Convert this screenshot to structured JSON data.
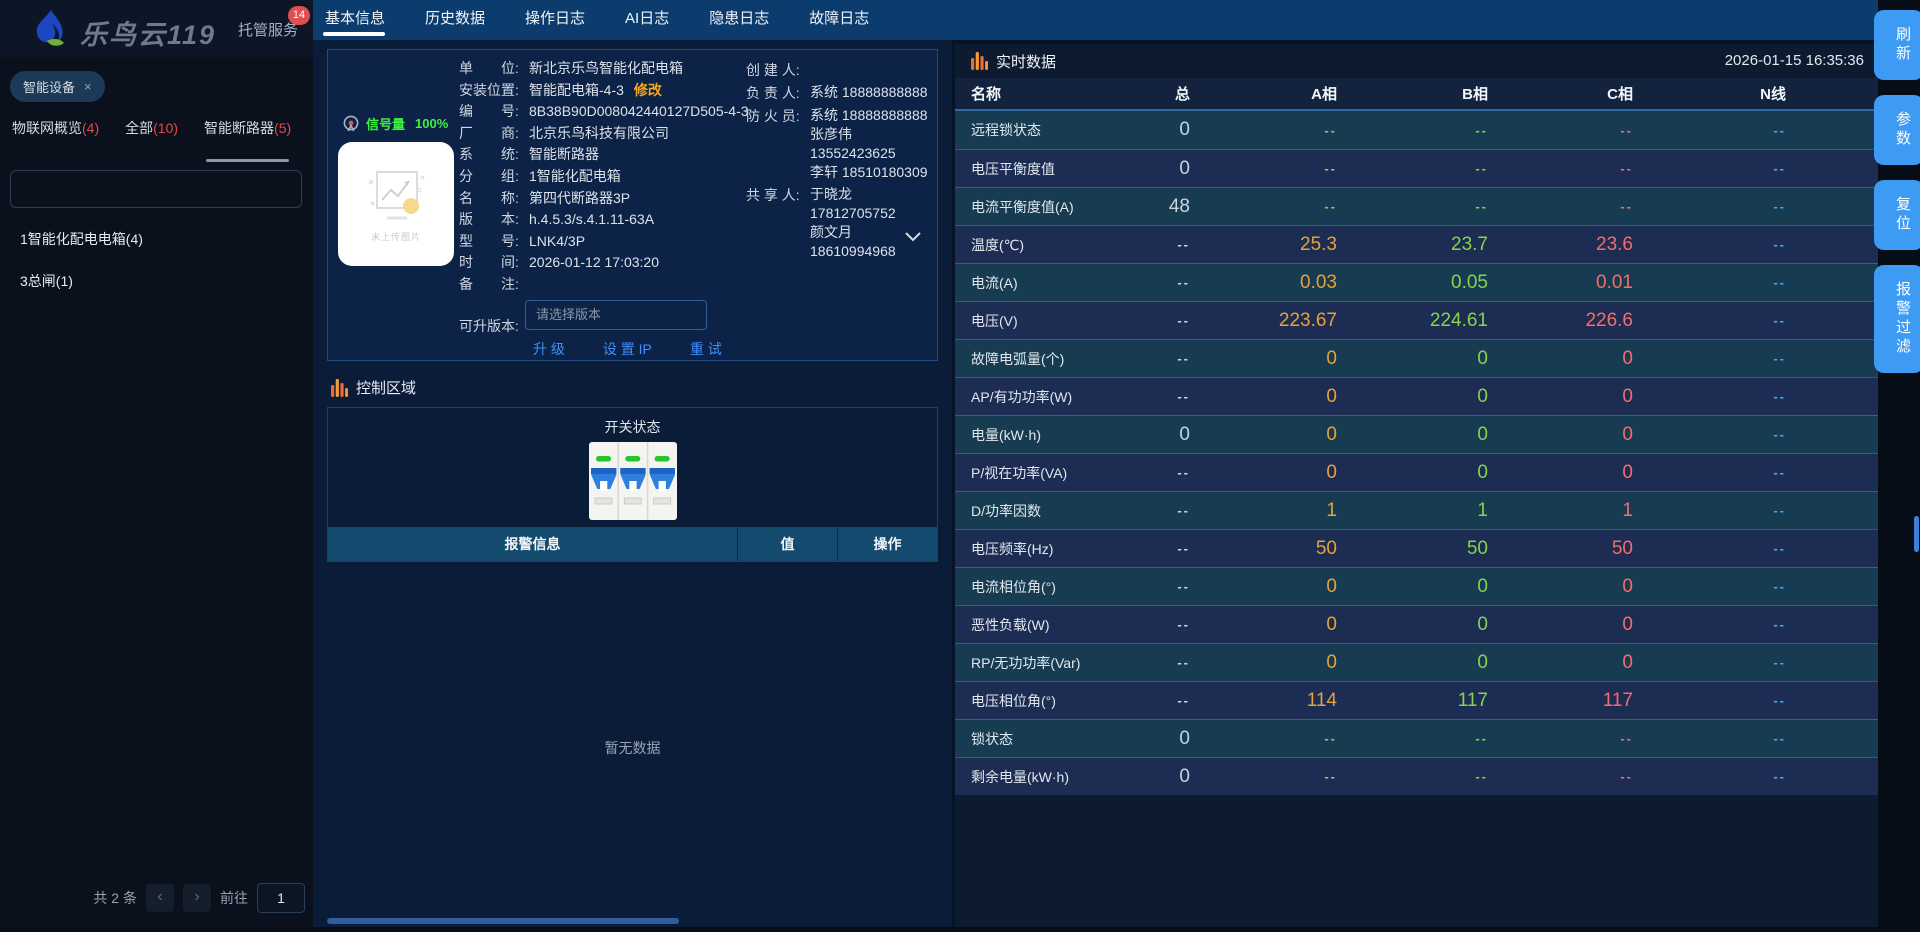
{
  "colors": {
    "phase_a": "#e6a23c",
    "phase_b": "#85d44b",
    "phase_c": "#f56c6c",
    "phase_n": "#3ba7ff",
    "total_col": "#cdd3dd",
    "accent_orange": "#f59a3c",
    "signal_green": "#3df03d",
    "button_blue": "#3e9bf4",
    "count_red": "#e34848",
    "link_blue": "#3f8ffc",
    "modify_orange": "#f5a623"
  },
  "header": {
    "logo_text": "乐鸟云119",
    "nav_label": "托管服务",
    "badge": "14"
  },
  "sidebar": {
    "chip_label": "智能设备",
    "close_glyph": "×",
    "tabs": [
      {
        "label": "物联网概览",
        "count": "(4)"
      },
      {
        "label": "全部",
        "count": "(10)"
      },
      {
        "label": "智能断路器",
        "count": "(5)",
        "active": true
      }
    ],
    "search_placeholder": "",
    "list": [
      "1智能化配电电箱(4)",
      "3总闸(1)"
    ],
    "pagination": {
      "total": "共 2 条",
      "prev": "‹",
      "next": "›",
      "goto_label": "前往",
      "page_value": "1"
    }
  },
  "detail": {
    "tabs": [
      {
        "label": "基本信息",
        "active": true
      },
      {
        "label": "历史数据"
      },
      {
        "label": "操作日志"
      },
      {
        "label": "AI日志"
      },
      {
        "label": "隐患日志"
      },
      {
        "label": "故障日志"
      }
    ],
    "signal_label": "信号量",
    "signal_value": "100%",
    "photo_text": "未上传图片",
    "fields": [
      {
        "label": "单　　位:",
        "value": "新北京乐鸟智能化配电箱"
      },
      {
        "label": "安装位置:",
        "value": "智能配电箱-4-3",
        "link": "修改"
      },
      {
        "label": "编　　号:",
        "value": "8B38B90D008042440127D505-4-3"
      },
      {
        "label": "厂　　商:",
        "value": "北京乐鸟科技有限公司"
      },
      {
        "label": "系　　统:",
        "value": "智能断路器"
      },
      {
        "label": "分　　组:",
        "value": "1智能化配电箱"
      },
      {
        "label": "名　　称:",
        "value": "第四代断路器3P"
      },
      {
        "label": "版　　本:",
        "value": "h.4.5.3/s.4.1.11-63A"
      },
      {
        "label": "型　　号:",
        "value": "LNK4/3P"
      },
      {
        "label": "时　　间:",
        "value": "2026-01-12 17:03:20"
      },
      {
        "label": "备　　注:",
        "value": ""
      }
    ],
    "contacts": [
      {
        "label": "创 建 人:",
        "lines": [
          ""
        ]
      },
      {
        "label": "负 责 人:",
        "lines": [
          "系统 18888888888"
        ]
      },
      {
        "label": "防 火 员:",
        "lines": [
          "系统 18888888888",
          "张彦伟",
          "13552423625",
          "李轩 18510180309"
        ]
      },
      {
        "label": "共 享 人:",
        "lines": [
          "于晓龙",
          "17812705752",
          "颜文月",
          "18610994968"
        ]
      }
    ],
    "upgrade": {
      "label": "可升版本:",
      "select_placeholder": "请选择版本",
      "actions": [
        "升 级",
        "设 置 IP",
        "重 试"
      ]
    },
    "control_title": "控制区域",
    "switch_label": "开关状态",
    "alarm": {
      "headers": [
        "报警信息",
        "值",
        "操作"
      ],
      "empty_text": "暂无数据"
    }
  },
  "realtime": {
    "title": "实时数据",
    "timestamp": "2026-01-15 16:35:36",
    "columns": [
      "名称",
      "总",
      "A相",
      "B相",
      "C相",
      "N线"
    ],
    "rows": [
      {
        "name": "远程锁状态",
        "total": "0",
        "a": "--",
        "b": "--",
        "c": "--",
        "n": "--"
      },
      {
        "name": "电压平衡度值",
        "total": "0",
        "a": "--",
        "b": "--",
        "c": "--",
        "n": "--"
      },
      {
        "name": "电流平衡度值(A)",
        "total": "48",
        "a": "--",
        "b": "--",
        "c": "--",
        "n": "--"
      },
      {
        "name": "温度(℃)",
        "total": "--",
        "a": "25.3",
        "b": "23.7",
        "c": "23.6",
        "n": "--"
      },
      {
        "name": "电流(A)",
        "total": "--",
        "a": "0.03",
        "b": "0.05",
        "c": "0.01",
        "n": "--"
      },
      {
        "name": "电压(V)",
        "total": "--",
        "a": "223.67",
        "b": "224.61",
        "c": "226.6",
        "n": "--"
      },
      {
        "name": "故障电弧量(个)",
        "total": "--",
        "a": "0",
        "b": "0",
        "c": "0",
        "n": "--"
      },
      {
        "name": "AP/有功功率(W)",
        "total": "--",
        "a": "0",
        "b": "0",
        "c": "0",
        "n": "--"
      },
      {
        "name": "电量(kW·h)",
        "total": "0",
        "a": "0",
        "b": "0",
        "c": "0",
        "n": "--"
      },
      {
        "name": "P/视在功率(VA)",
        "total": "--",
        "a": "0",
        "b": "0",
        "c": "0",
        "n": "--"
      },
      {
        "name": "D/功率因数",
        "total": "--",
        "a": "1",
        "b": "1",
        "c": "1",
        "n": "--"
      },
      {
        "name": "电压频率(Hz)",
        "total": "--",
        "a": "50",
        "b": "50",
        "c": "50",
        "n": "--"
      },
      {
        "name": "电流相位角(°)",
        "total": "--",
        "a": "0",
        "b": "0",
        "c": "0",
        "n": "--"
      },
      {
        "name": "恶性负载(W)",
        "total": "--",
        "a": "0",
        "b": "0",
        "c": "0",
        "n": "--"
      },
      {
        "name": "RP/无功功率(Var)",
        "total": "--",
        "a": "0",
        "b": "0",
        "c": "0",
        "n": "--"
      },
      {
        "name": "电压相位角(°)",
        "total": "--",
        "a": "114",
        "b": "117",
        "c": "117",
        "n": "--"
      },
      {
        "name": "锁状态",
        "total": "0",
        "a": "--",
        "b": "--",
        "c": "--",
        "n": "--"
      },
      {
        "name": "剩余电量(kW·h)",
        "total": "0",
        "a": "--",
        "b": "--",
        "c": "--",
        "n": "--"
      }
    ]
  },
  "side_buttons": [
    {
      "label": "刷新"
    },
    {
      "label": "参数"
    },
    {
      "label": "复位"
    },
    {
      "label": "报警过滤"
    }
  ]
}
